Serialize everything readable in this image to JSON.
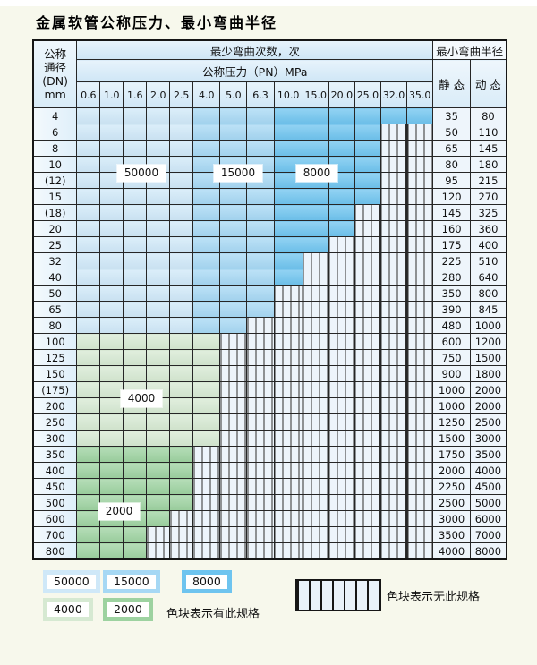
{
  "title": "金属软管公称压力、最小弯曲半径",
  "header": {
    "dn_lines": [
      "公称",
      "通径",
      "(DN)",
      "mm"
    ],
    "bend_cycles": "最少弯曲次数，次",
    "pressure_mpa": "公称压力（PN）MPa",
    "min_bend_radius": "最小弯曲半径",
    "static_label": "静 态",
    "dynamic_label": "动 态"
  },
  "pressures": [
    "0.6",
    "1.0",
    "1.6",
    "2.0",
    "2.5",
    "4.0",
    "5.0",
    "6.3",
    "10.0",
    "15.0",
    "20.0",
    "25.0",
    "32.0",
    "35.0"
  ],
  "zones": {
    "blue_light": {
      "label": "50000",
      "color": "#cfe8f8"
    },
    "blue_mid": {
      "label": "15000",
      "color": "#a6d8f4"
    },
    "blue_dark": {
      "label": "8000",
      "color": "#6ec4ef"
    },
    "green_light": {
      "label": "4000",
      "color": "#d6e9d2"
    },
    "green_mid": {
      "label": "2000",
      "color": "#9dd2a0"
    },
    "hatch_bg": "#edf4fb"
  },
  "rows": [
    {
      "dn": "4",
      "zone": "blue",
      "last_col": 13,
      "static": "35",
      "dynamic": "80"
    },
    {
      "dn": "6",
      "zone": "blue",
      "last_col": 11,
      "static": "50",
      "dynamic": "110"
    },
    {
      "dn": "8",
      "zone": "blue",
      "last_col": 11,
      "static": "65",
      "dynamic": "145"
    },
    {
      "dn": "10",
      "zone": "blue",
      "last_col": 11,
      "static": "80",
      "dynamic": "180"
    },
    {
      "dn": "(12)",
      "zone": "blue",
      "last_col": 11,
      "static": "95",
      "dynamic": "215"
    },
    {
      "dn": "15",
      "zone": "blue",
      "last_col": 11,
      "static": "120",
      "dynamic": "270"
    },
    {
      "dn": "(18)",
      "zone": "blue",
      "last_col": 10,
      "static": "145",
      "dynamic": "325"
    },
    {
      "dn": "20",
      "zone": "blue",
      "last_col": 10,
      "static": "160",
      "dynamic": "360"
    },
    {
      "dn": "25",
      "zone": "blue",
      "last_col": 9,
      "static": "175",
      "dynamic": "400"
    },
    {
      "dn": "32",
      "zone": "blue",
      "last_col": 8,
      "static": "225",
      "dynamic": "510"
    },
    {
      "dn": "40",
      "zone": "blue",
      "last_col": 8,
      "static": "280",
      "dynamic": "640"
    },
    {
      "dn": "50",
      "zone": "blue",
      "last_col": 7,
      "static": "350",
      "dynamic": "800"
    },
    {
      "dn": "65",
      "zone": "blue",
      "last_col": 7,
      "static": "390",
      "dynamic": "845"
    },
    {
      "dn": "80",
      "zone": "blue",
      "last_col": 6,
      "static": "480",
      "dynamic": "1000"
    },
    {
      "dn": "100",
      "zone": "g4",
      "last_col": 5,
      "static": "600",
      "dynamic": "1200"
    },
    {
      "dn": "125",
      "zone": "g4",
      "last_col": 5,
      "static": "750",
      "dynamic": "1500"
    },
    {
      "dn": "150",
      "zone": "g4",
      "last_col": 5,
      "static": "900",
      "dynamic": "1800"
    },
    {
      "dn": "(175)",
      "zone": "g4",
      "last_col": 5,
      "static": "1000",
      "dynamic": "2000"
    },
    {
      "dn": "200",
      "zone": "g4",
      "last_col": 5,
      "static": "1000",
      "dynamic": "2000"
    },
    {
      "dn": "250",
      "zone": "g4",
      "last_col": 5,
      "static": "1250",
      "dynamic": "2500"
    },
    {
      "dn": "300",
      "zone": "g4",
      "last_col": 5,
      "static": "1500",
      "dynamic": "3000"
    },
    {
      "dn": "350",
      "zone": "g2",
      "last_col": 4,
      "static": "1750",
      "dynamic": "3500"
    },
    {
      "dn": "400",
      "zone": "g2",
      "last_col": 4,
      "static": "2000",
      "dynamic": "4000"
    },
    {
      "dn": "450",
      "zone": "g2",
      "last_col": 4,
      "static": "2250",
      "dynamic": "4500"
    },
    {
      "dn": "500",
      "zone": "g2",
      "last_col": 4,
      "static": "2500",
      "dynamic": "5000"
    },
    {
      "dn": "600",
      "zone": "g2",
      "last_col": 3,
      "static": "3000",
      "dynamic": "6000"
    },
    {
      "dn": "700",
      "zone": "g2",
      "last_col": 2,
      "static": "3500",
      "dynamic": "7000"
    },
    {
      "dn": "800",
      "zone": "g2",
      "last_col": 2,
      "static": "4000",
      "dynamic": "8000"
    }
  ],
  "overlays": [
    {
      "text": "50000",
      "row_boundary": 4,
      "col_boundary": 3
    },
    {
      "text": "15000",
      "row_boundary": 4,
      "col_boundary": 7
    },
    {
      "text": "8000",
      "row_boundary": 4,
      "col_boundary": 10
    },
    {
      "text": "4000",
      "row_boundary": 18,
      "col_boundary": 3
    },
    {
      "text": "2000",
      "row_boundary": 25,
      "col_boundary": 2
    }
  ],
  "legend": {
    "present_items": [
      {
        "zone": "blue_light",
        "label": "50000"
      },
      {
        "zone": "blue_mid",
        "label": "15000"
      },
      {
        "zone": "blue_dark",
        "label": "8000"
      },
      {
        "zone": "green_light",
        "label": "4000"
      },
      {
        "zone": "green_mid",
        "label": "2000"
      }
    ],
    "present_text": "色块表示有此规格",
    "absent_text": "色块表示无此规格"
  }
}
